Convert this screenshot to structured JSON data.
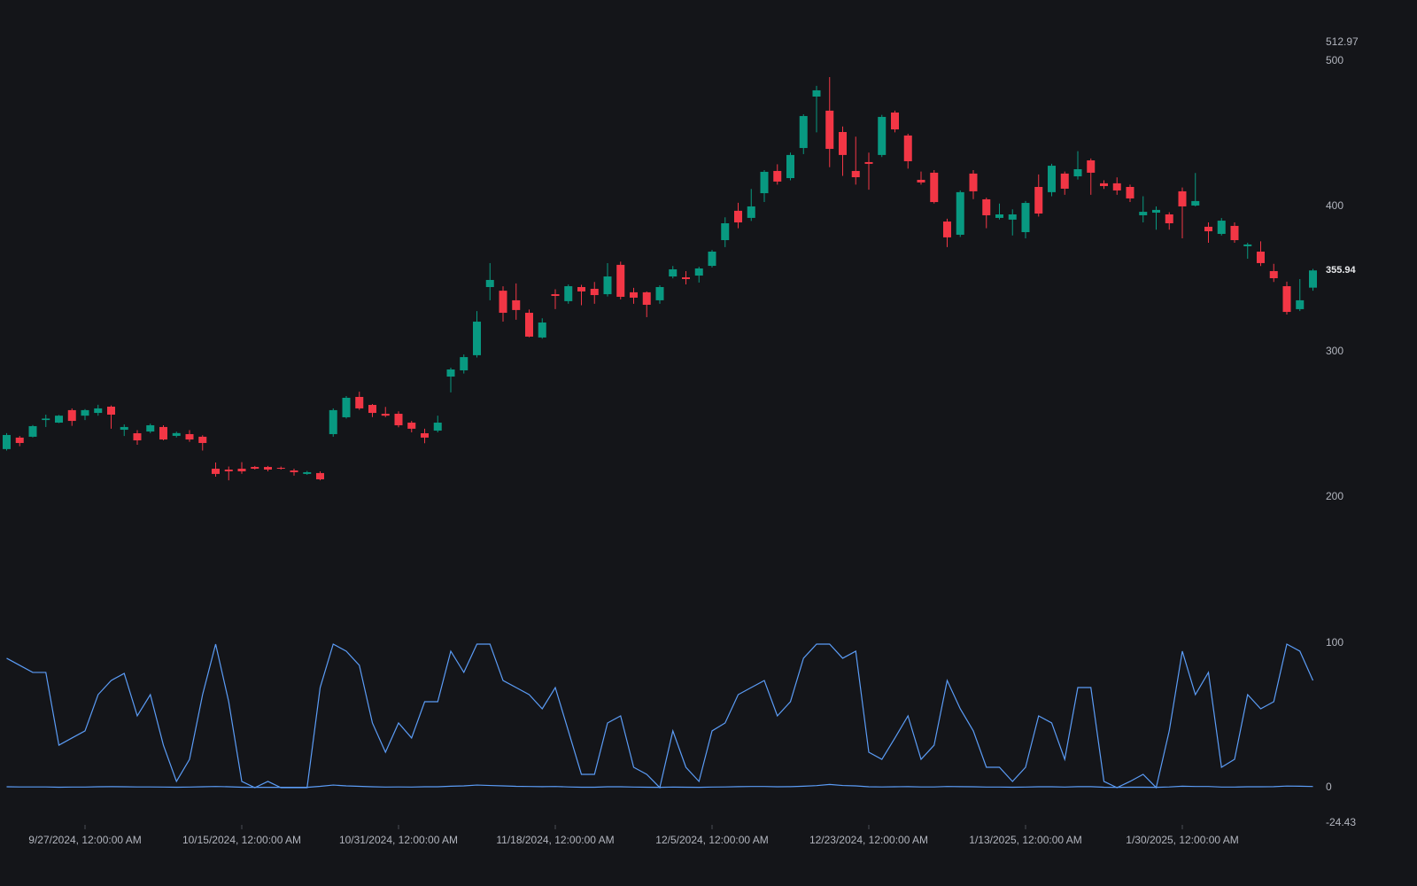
{
  "chart_data": [
    {
      "type": "candlestick",
      "categories": [
        null,
        null,
        null,
        null,
        null,
        null,
        "9/27/2024, 12:00:00 AM",
        null,
        null,
        null,
        null,
        null,
        null,
        null,
        null,
        null,
        null,
        null,
        "10/15/2024, 12:00:00 AM",
        null,
        null,
        null,
        null,
        null,
        null,
        null,
        null,
        null,
        null,
        null,
        "10/31/2024, 12:00:00 AM",
        null,
        null,
        null,
        null,
        null,
        null,
        null,
        null,
        null,
        null,
        null,
        "11/18/2024, 12:00:00 AM",
        null,
        null,
        null,
        null,
        null,
        null,
        null,
        null,
        null,
        null,
        null,
        "12/5/2024, 12:00:00 AM",
        null,
        null,
        null,
        null,
        null,
        null,
        null,
        null,
        null,
        null,
        null,
        "12/23/2024, 12:00:00 AM",
        null,
        null,
        null,
        null,
        null,
        null,
        null,
        null,
        null,
        null,
        null,
        "1/13/2025, 12:00:00 AM",
        null,
        null,
        null,
        null,
        null,
        null,
        null,
        null,
        null,
        null,
        null,
        "1/30/2025, 12:00:00 AM",
        null,
        null,
        null,
        null,
        null,
        null,
        null,
        null,
        null,
        null
      ],
      "open": [
        233,
        240.9,
        241.5,
        253,
        251.2,
        259.8,
        256,
        257.9,
        262.2,
        246.3,
        243.9,
        245.1,
        248.2,
        242.1,
        243.3,
        241.5,
        219.5,
        218.9,
        219.5,
        220.7,
        220.7,
        220.1,
        218.3,
        215.9,
        216.5,
        243.3,
        254.9,
        268.9,
        263.4,
        257.3,
        257.3,
        251.2,
        243.9,
        245.7,
        282.9,
        287.2,
        297.6,
        344.5,
        342,
        335.4,
        326.8,
        309.8,
        339.6,
        334.8,
        344.5,
        343.3,
        339.6,
        359.8,
        340.9,
        340.9,
        335.4,
        351.8,
        351.2,
        352.4,
        359.1,
        376.8,
        397,
        392.1,
        409.1,
        424.4,
        419.5,
        440.2,
        475.6,
        465.9,
        451.2,
        424.4,
        430.5,
        435.4,
        464.6,
        448.8,
        418.3,
        423.2,
        389.6,
        380.5,
        422.6,
        404.9,
        392.1,
        390.9,
        382.3,
        413.4,
        409.8,
        422.6,
        420.7,
        431.7,
        415.9,
        415.9,
        413.4,
        393.9,
        395.7,
        394.5,
        410.4,
        400.6,
        386,
        381.1,
        386.6,
        372.6,
        368.9,
        355.5,
        345.1,
        329.3,
        344.1
      ],
      "high": [
        244,
        242,
        249.5,
        256.7,
        256.5,
        261,
        260.5,
        263.5,
        263,
        250,
        246,
        250.5,
        249.4,
        245,
        246,
        242.5,
        223.8,
        221,
        224,
        221.4,
        221.4,
        221,
        219.5,
        218,
        217.7,
        261,
        269.5,
        272.5,
        264,
        262,
        259,
        252.4,
        247,
        256,
        289,
        298.1,
        328,
        361,
        345,
        347,
        329,
        323,
        343,
        346.3,
        346,
        348,
        361,
        362,
        344,
        341.5,
        345.7,
        359,
        355.5,
        358.5,
        370,
        392.5,
        402.5,
        412,
        425,
        429,
        437,
        463.4,
        483,
        489,
        455,
        448,
        437,
        463,
        465.9,
        450,
        424,
        425,
        391.5,
        411,
        425,
        406,
        402,
        398,
        403.7,
        422,
        429.3,
        424,
        438,
        433,
        418,
        420,
        415,
        407,
        400,
        396,
        413,
        423,
        389,
        392,
        389,
        375,
        376,
        360.5,
        348.2,
        350,
        357
      ],
      "low": [
        232,
        235,
        241,
        248.2,
        250.9,
        249,
        253,
        256,
        247,
        242,
        236,
        244,
        239,
        241,
        238,
        232,
        214,
        211.5,
        216,
        218.9,
        217.7,
        218.9,
        214.7,
        215.3,
        211.5,
        241.5,
        254,
        260,
        255,
        255,
        248,
        244.5,
        237,
        244.5,
        272,
        285,
        296,
        335.4,
        320.7,
        322,
        310,
        309,
        329.3,
        333,
        332,
        333,
        338,
        336,
        333,
        323.8,
        333,
        350.5,
        346.3,
        347.6,
        358,
        372,
        385,
        390,
        403,
        415,
        418,
        436,
        451,
        427,
        421,
        415,
        411.5,
        434,
        451,
        426,
        415,
        402,
        372,
        379,
        405,
        385,
        391,
        380,
        378,
        393,
        407,
        408,
        418.5,
        408,
        412,
        408,
        403,
        389,
        384,
        384,
        378,
        400,
        375,
        380,
        375,
        364,
        359,
        348,
        325.6,
        328,
        342
      ],
      "close": [
        242.7,
        237.2,
        248.8,
        254,
        256,
        252.4,
        259.8,
        261,
        256.7,
        248.2,
        239,
        249.4,
        239.6,
        244,
        239.6,
        237.2,
        215.9,
        217.7,
        217.7,
        219.5,
        218.9,
        219.5,
        217.1,
        217.1,
        212.2,
        259.8,
        268.3,
        261,
        257.9,
        256,
        249.4,
        247,
        240.9,
        251.2,
        287.8,
        296.3,
        320.7,
        349.4,
        326.8,
        328.7,
        310.4,
        320.1,
        338.4,
        345.1,
        341.5,
        339,
        351.8,
        337.8,
        337.2,
        332.3,
        344.5,
        356.7,
        350,
        357.3,
        368.9,
        388.4,
        389,
        400,
        423.8,
        417.1,
        435.4,
        462.2,
        479.9,
        439.6,
        435.4,
        420.1,
        429.3,
        461.6,
        453,
        431.1,
        416.5,
        403,
        378.7,
        409.8,
        410.4,
        393.9,
        394.5,
        394.5,
        402.4,
        395.1,
        428,
        412.2,
        425.6,
        423.2,
        414,
        411,
        405.5,
        396.3,
        397.6,
        388.4,
        400,
        403.7,
        382.9,
        390.2,
        376.8,
        373.8,
        361,
        350.6,
        327.4,
        335.4,
        355.94
      ],
      "up_color": "#089981",
      "down_color": "#f23645",
      "ylim": [
        115,
        512.97
      ],
      "yticks": [
        512.97,
        500,
        400,
        300,
        200
      ]
    },
    {
      "type": "line",
      "series": [
        {
          "color": "#5b9cf6",
          "values": [
            89.6,
            84.7,
            79.8,
            79.8,
            29.4,
            34.4,
            39.3,
            64.4,
            74.2,
            79.1,
            49.7,
            64.4,
            29.4,
            4.3,
            19.6,
            64.4,
            99.4,
            59.5,
            4.3,
            0,
            4.3,
            0,
            0,
            0,
            69.3,
            99.4,
            94.5,
            84.7,
            44.8,
            24.5,
            44.8,
            34.4,
            59.5,
            59.5,
            94.5,
            79.8,
            99.4,
            99.4,
            74.2,
            69.3,
            64.4,
            54.6,
            69.3,
            39.3,
            9.2,
            9.2,
            44.8,
            49.7,
            14.1,
            9.2,
            0,
            39.3,
            14.1,
            4.3,
            39.3,
            44.8,
            64.4,
            69.3,
            74.2,
            49.7,
            59.5,
            89.6,
            99.4,
            99.4,
            89.6,
            94.5,
            24.5,
            19.6,
            34.4,
            49.7,
            19.6,
            29.4,
            74.2,
            54.6,
            39.3,
            14.1,
            14.1,
            4.3,
            14.1,
            49.7,
            44.8,
            19.6,
            69.3,
            69.3,
            4.3,
            0,
            4.3,
            9.2,
            0,
            39.3,
            94.5,
            64.4,
            79.8,
            14.1,
            19.6,
            64.4,
            54.6,
            59.5,
            99.4,
            94.5,
            74.2
          ]
        },
        {
          "color": "#5b9cf6",
          "values": [
            0.6,
            0.5,
            0.5,
            0.5,
            0.3,
            0.4,
            0.4,
            0.6,
            0.7,
            0.6,
            0.5,
            0.5,
            0.4,
            0.3,
            0.4,
            0.6,
            0.8,
            0.6,
            0.3,
            0.2,
            0.2,
            0.2,
            0.2,
            0.2,
            0.9,
            1.8,
            1.2,
            0.9,
            0.6,
            0.4,
            0.5,
            0.4,
            0.6,
            0.6,
            1,
            1.2,
            1.8,
            1.5,
            1.2,
            0.9,
            0.8,
            0.7,
            0.8,
            0.5,
            0.3,
            0.3,
            0.6,
            0.6,
            0.4,
            0.3,
            0.2,
            0.4,
            0.3,
            0.2,
            0.4,
            0.5,
            0.7,
            0.8,
            0.8,
            0.6,
            0.7,
            1,
            1.4,
            2.2,
            1.5,
            1.2,
            0.6,
            0.5,
            0.6,
            0.7,
            0.5,
            0.5,
            0.8,
            0.7,
            0.6,
            0.4,
            0.4,
            0.3,
            0.4,
            0.6,
            0.6,
            0.4,
            0.7,
            0.7,
            0.3,
            0.2,
            0.3,
            0.3,
            0.2,
            0.5,
            1,
            0.8,
            0.8,
            0.4,
            0.4,
            0.6,
            0.6,
            0.7,
            1.1,
            1,
            0.8
          ]
        }
      ],
      "ylim": [
        -24.43,
        110
      ],
      "yticks": [
        100,
        0,
        -24.43
      ]
    }
  ]
}
